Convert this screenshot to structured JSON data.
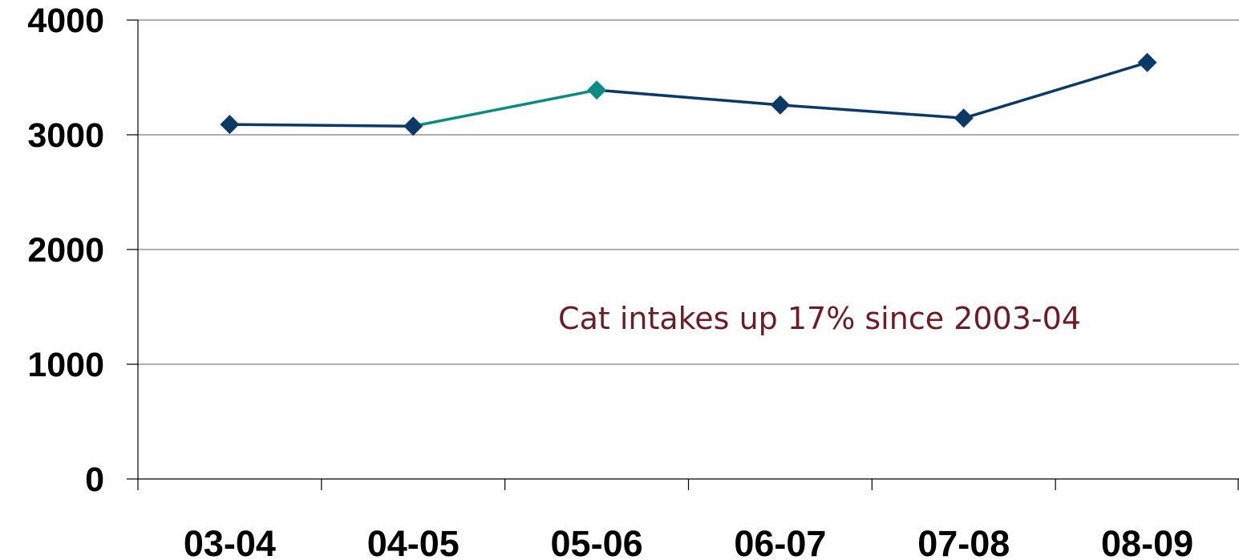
{
  "chart_data": {
    "type": "line",
    "title": "",
    "xlabel": "",
    "ylabel": "",
    "categories": [
      "03-04",
      "04-05",
      "05-06",
      "06-07",
      "07-08",
      "08-09"
    ],
    "series": [
      {
        "values": [
          3090,
          3075,
          3390,
          3260,
          3145,
          3630
        ]
      }
    ],
    "ylim": [
      0,
      4000
    ],
    "yticks": [
      "0",
      "1000",
      "2000",
      "3000",
      "4000"
    ],
    "grid": true,
    "legend": "none",
    "annotation": "Cat intakes up 17% since 2003-04",
    "colors": {
      "line": "#0b3a66",
      "highlight": "#0e8a84",
      "annotation": "#6e1c24",
      "grid": "#7f7f7f",
      "axis": "#000000"
    },
    "highlight_index": 2
  }
}
